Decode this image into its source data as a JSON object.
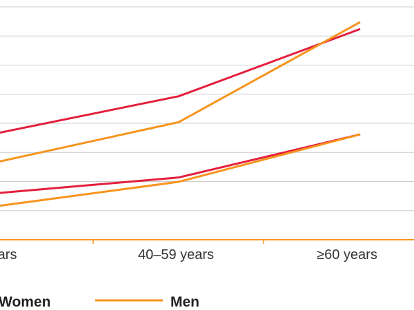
{
  "chart_data": {
    "type": "line",
    "categories": [
      "years",
      "40–59 years",
      "≥60 years"
    ],
    "ylim": [
      0,
      80
    ],
    "grid": true,
    "legend_position": "bottom",
    "series": [
      {
        "name": "Women",
        "group": "upper",
        "color": "#e31e3c",
        "values": [
          36.8,
          49.3,
          72.4
        ]
      },
      {
        "name": "Men",
        "group": "upper",
        "color": "#f7941d",
        "values": [
          26.9,
          40.4,
          74.8
        ]
      },
      {
        "name": "Women",
        "group": "lower",
        "color": "#e31e3c",
        "values": [
          16.1,
          21.4,
          36.2
        ]
      },
      {
        "name": "Men",
        "group": "lower",
        "color": "#f7941d",
        "values": [
          11.7,
          19.9,
          36.2
        ]
      }
    ],
    "legend": [
      {
        "label": "Women",
        "color": "#e31e3c"
      },
      {
        "label": "Men",
        "color": "#f7941d"
      }
    ]
  },
  "colors": {
    "grid": "#cccccc",
    "axis": "#f7941d"
  }
}
